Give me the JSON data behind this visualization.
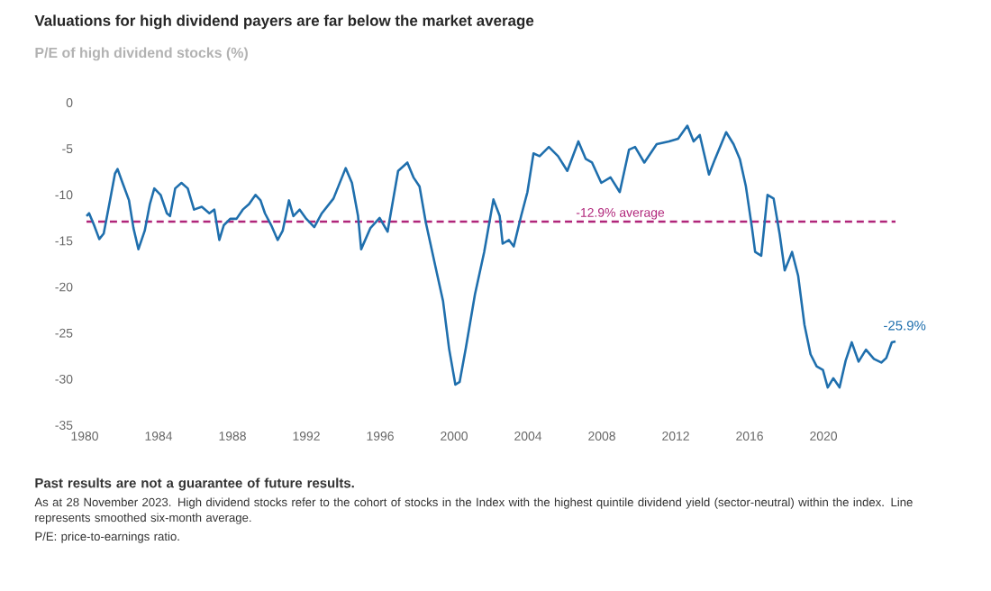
{
  "chart_data": {
    "type": "line",
    "title": "Valuations for high dividend payers are far below the market average",
    "subtitle": "P/E of high dividend stocks (%)",
    "x": [
      1980.1,
      1980.24,
      1980.51,
      1980.79,
      1981.03,
      1981.37,
      1981.64,
      1981.78,
      1982.05,
      1982.4,
      1982.64,
      1982.91,
      1983.25,
      1983.53,
      1983.77,
      1984.11,
      1984.45,
      1984.62,
      1984.9,
      1985.24,
      1985.58,
      1985.92,
      1986.34,
      1986.75,
      1987.02,
      1987.29,
      1987.53,
      1987.88,
      1988.22,
      1988.56,
      1988.9,
      1989.25,
      1989.52,
      1989.76,
      1990.1,
      1990.45,
      1990.72,
      1991.06,
      1991.3,
      1991.64,
      1992,
      1992.43,
      1992.84,
      1993.47,
      1994.13,
      1994.47,
      1994.8,
      1994.97,
      1995.47,
      1995.97,
      1996.4,
      1996.97,
      1997.47,
      1997.8,
      1998.13,
      1998.47,
      1998.97,
      1999.4,
      1999.73,
      2000.07,
      2000.3,
      2000.63,
      2001.13,
      2001.63,
      2002.13,
      2002.47,
      2002.63,
      2002.97,
      2003.23,
      2003.63,
      2003.97,
      2004.3,
      2004.63,
      2005.13,
      2005.63,
      2006.13,
      2006.73,
      2007.13,
      2007.47,
      2007.97,
      2008.47,
      2008.97,
      2009.47,
      2009.8,
      2010.3,
      2010.97,
      2011.63,
      2012.13,
      2012.63,
      2012.97,
      2013.3,
      2013.8,
      2014.13,
      2014.73,
      2015.13,
      2015.47,
      2015.8,
      2016.13,
      2016.3,
      2016.63,
      2016.97,
      2017.3,
      2017.63,
      2017.9,
      2018.3,
      2018.63,
      2018.97,
      2019.3,
      2019.63,
      2019.97,
      2020.23,
      2020.53,
      2020.87,
      2021.2,
      2021.53,
      2021.9,
      2022.3,
      2022.73,
      2023.13,
      2023.4,
      2023.7,
      2023.9
    ],
    "series": [
      {
        "color": "#1f6fad",
        "values": [
          -12.3,
          -12,
          -13.3,
          -14.8,
          -14.2,
          -10.6,
          -7.7,
          -7.2,
          -8.7,
          -10.6,
          -13.6,
          -15.9,
          -13.9,
          -11,
          -9.3,
          -10,
          -12,
          -12.3,
          -9.3,
          -8.7,
          -9.3,
          -11.6,
          -11.3,
          -12,
          -11.6,
          -14.9,
          -13.3,
          -12.6,
          -12.6,
          -11.6,
          -11,
          -10,
          -10.6,
          -12,
          -13.3,
          -14.9,
          -13.9,
          -10.6,
          -12.3,
          -11.6,
          -12.6,
          -13.5,
          -12,
          -10.4,
          -7.1,
          -8.7,
          -12.3,
          -15.9,
          -13.6,
          -12.5,
          -14,
          -7.4,
          -6.5,
          -8.1,
          -9.1,
          -13,
          -17.6,
          -21.5,
          -26.7,
          -30.6,
          -30.3,
          -26.7,
          -20.8,
          -16.2,
          -10.5,
          -12.3,
          -15.3,
          -14.9,
          -15.6,
          -12.3,
          -9.7,
          -5.5,
          -5.8,
          -4.8,
          -5.8,
          -7.4,
          -4.2,
          -6.1,
          -6.5,
          -8.7,
          -8.1,
          -9.7,
          -5.1,
          -4.8,
          -6.5,
          -4.5,
          -4.2,
          -3.9,
          -2.5,
          -4.2,
          -3.5,
          -7.8,
          -6.1,
          -3.2,
          -4.5,
          -6.1,
          -9.1,
          -13.6,
          -16.2,
          -16.6,
          -10,
          -10.4,
          -14.3,
          -18.2,
          -16.2,
          -18.8,
          -24.1,
          -27.3,
          -28.6,
          -29,
          -30.9,
          -29.9,
          -30.9,
          -28,
          -26,
          -28.1,
          -26.8,
          -27.8,
          -28.2,
          -27.7,
          -26,
          -25.9
        ]
      }
    ],
    "xlim": [
      1980,
      2023.9
    ],
    "ylim": [
      -35,
      0
    ],
    "xticks": [
      1980,
      1984,
      1988,
      1992,
      1996,
      2000,
      2004,
      2008,
      2012,
      2016,
      2020
    ],
    "yticks": [
      0,
      -5,
      -10,
      -15,
      -20,
      -25,
      -30,
      -35
    ],
    "ref_lines": [
      {
        "axis": "y",
        "value": -12.9,
        "label": "-12.9% average",
        "color": "#b0257a",
        "line_style": "dashed"
      }
    ],
    "annotations": [
      {
        "text": "-25.9%",
        "x": 2023.9,
        "y": -25.9
      },
      "Past results are not a guarantee of future results.",
      "As at 28 November 2023. High dividend stocks refer to the cohort of stocks in the Index with the highest quintile dividend yield (sector-neutral) within the index. Line represents smoothed six-month average.",
      "P/E: price-to-earnings ratio."
    ]
  }
}
